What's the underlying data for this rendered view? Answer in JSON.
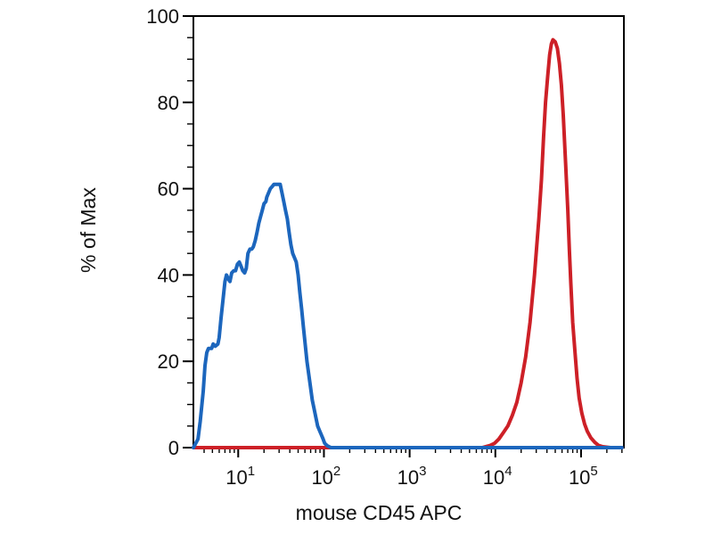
{
  "figure": {
    "background_color": "#ffffff",
    "frame_color": "#000000",
    "xlabel": "mouse CD45 APC",
    "ylabel": "% of Max"
  },
  "chart_data": {
    "type": "line",
    "subtype": "flow-cytometry-histogram-overlay",
    "title": "",
    "xlabel": "mouse CD45 APC",
    "ylabel": "% of Max",
    "x_scale": "log10",
    "xlim": [
      3,
      316000
    ],
    "ylim": [
      0,
      100
    ],
    "grid": false,
    "legend_position": "none",
    "x_major_ticks": [
      10,
      100,
      1000,
      10000,
      100000
    ],
    "x_major_tick_exponents": [
      1,
      2,
      3,
      4,
      5
    ],
    "x_tick_base": "10",
    "x_minor_tick_multiples": [
      2,
      3,
      4,
      5,
      6,
      7,
      8,
      9
    ],
    "y_major_ticks": [
      0,
      20,
      40,
      60,
      80,
      100
    ],
    "y_major_tick_labels": [
      "0",
      "20",
      "40",
      "60",
      "80",
      "100"
    ],
    "y_minor_step": 5,
    "series": [
      {
        "name": "red-stained-population",
        "color": "#cd2027",
        "peak_x": 47000,
        "peak_y": 94.5,
        "points": [
          [
            3.0,
            0
          ],
          [
            7000,
            0
          ],
          [
            8700,
            0.5
          ],
          [
            9800,
            1
          ],
          [
            11000,
            2
          ],
          [
            12400,
            3.5
          ],
          [
            14000,
            5
          ],
          [
            15800,
            7.5
          ],
          [
            17800,
            10.5
          ],
          [
            20000,
            15
          ],
          [
            22600,
            21
          ],
          [
            25400,
            29
          ],
          [
            28600,
            40
          ],
          [
            32200,
            53
          ],
          [
            34500,
            62
          ],
          [
            36500,
            72
          ],
          [
            38500,
            80
          ],
          [
            40800,
            86
          ],
          [
            43000,
            91
          ],
          [
            45000,
            93.5
          ],
          [
            47000,
            94.5
          ],
          [
            50000,
            94
          ],
          [
            53000,
            92.5
          ],
          [
            56000,
            89
          ],
          [
            59000,
            84
          ],
          [
            62000,
            77
          ],
          [
            66000,
            66
          ],
          [
            70000,
            55
          ],
          [
            73000,
            46
          ],
          [
            76000,
            38
          ],
          [
            80000,
            29
          ],
          [
            85000,
            22
          ],
          [
            90000,
            16
          ],
          [
            95000,
            11.5
          ],
          [
            102000,
            8
          ],
          [
            110000,
            5.5
          ],
          [
            118000,
            3.8
          ],
          [
            130000,
            2.3
          ],
          [
            145000,
            1.2
          ],
          [
            160000,
            0.5
          ],
          [
            180000,
            0.2
          ],
          [
            220000,
            0
          ],
          [
            300000,
            0
          ]
        ]
      },
      {
        "name": "blue-negative-population",
        "color": "#1c66bd",
        "peak_x": 28,
        "peak_y": 61,
        "points": [
          [
            3.0,
            0
          ],
          [
            3.4,
            2
          ],
          [
            3.6,
            6
          ],
          [
            3.9,
            13
          ],
          [
            4.1,
            19
          ],
          [
            4.3,
            22
          ],
          [
            4.5,
            23
          ],
          [
            4.9,
            23
          ],
          [
            5.1,
            24
          ],
          [
            5.4,
            23.5
          ],
          [
            5.8,
            24
          ],
          [
            6.0,
            25.5
          ],
          [
            6.3,
            30
          ],
          [
            6.7,
            35
          ],
          [
            7.0,
            38.5
          ],
          [
            7.3,
            40
          ],
          [
            7.7,
            39
          ],
          [
            8.0,
            38.5
          ],
          [
            8.4,
            40.5
          ],
          [
            8.9,
            41
          ],
          [
            9.3,
            41
          ],
          [
            9.8,
            42.5
          ],
          [
            10.3,
            43
          ],
          [
            10.8,
            42
          ],
          [
            11.3,
            41
          ],
          [
            11.9,
            40.5
          ],
          [
            12.4,
            41.5
          ],
          [
            13.0,
            45
          ],
          [
            13.7,
            46
          ],
          [
            14.4,
            46
          ],
          [
            15.0,
            46.5
          ],
          [
            15.8,
            48
          ],
          [
            16.6,
            50
          ],
          [
            17.4,
            52
          ],
          [
            18.2,
            53.5
          ],
          [
            19.1,
            55
          ],
          [
            20.0,
            56.5
          ],
          [
            21.0,
            57
          ],
          [
            21.5,
            58
          ],
          [
            22.6,
            59
          ],
          [
            23.7,
            60
          ],
          [
            24.9,
            60.5
          ],
          [
            26.1,
            61
          ],
          [
            28.0,
            61
          ],
          [
            30.9,
            61
          ],
          [
            32.4,
            59
          ],
          [
            34.0,
            57
          ],
          [
            35.6,
            55
          ],
          [
            37.4,
            53
          ],
          [
            39.2,
            50
          ],
          [
            41.2,
            47
          ],
          [
            43.2,
            45
          ],
          [
            45.3,
            44
          ],
          [
            47.5,
            43
          ],
          [
            50.0,
            40
          ],
          [
            52.3,
            36
          ],
          [
            55.0,
            32
          ],
          [
            57.6,
            28
          ],
          [
            60.4,
            24
          ],
          [
            63.4,
            20
          ],
          [
            66.5,
            17
          ],
          [
            69.8,
            14
          ],
          [
            73.2,
            11
          ],
          [
            76.8,
            9
          ],
          [
            80.6,
            7
          ],
          [
            84.5,
            5
          ],
          [
            88.7,
            4
          ],
          [
            93.1,
            3
          ],
          [
            97.7,
            2
          ],
          [
            102,
            1
          ],
          [
            110,
            0.4
          ],
          [
            121,
            0
          ],
          [
            300000,
            0
          ]
        ]
      }
    ]
  }
}
